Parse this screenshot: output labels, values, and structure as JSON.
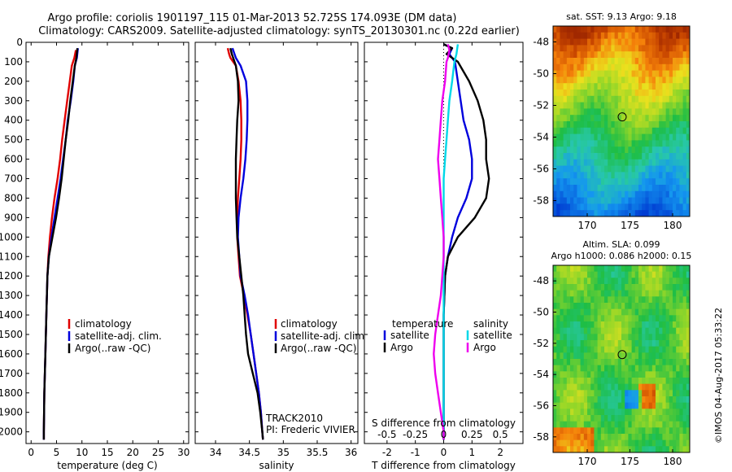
{
  "title_line1": "Argo profile: coriolis 1901197_115 01-Mar-2013 52.725S 174.093E (DM data)",
  "title_line2": "Climatology: CARS2009. Satellite-adjusted climatology: synTS_20130301.nc (0.22d earlier)",
  "colors": {
    "climatology": "#e00000",
    "satellite": "#0000dd",
    "argo": "#000000",
    "sat_salinity": "#00d8e8",
    "argo_salinity": "#ee00ee"
  },
  "chart_data": [
    {
      "type": "line",
      "xlabel": "temperature (deg C)",
      "xlim": [
        -1,
        31
      ],
      "xticks": [
        0,
        5,
        10,
        15,
        20,
        25,
        30
      ],
      "ylim": [
        2060,
        0
      ],
      "yticks": [
        0,
        100,
        200,
        300,
        400,
        500,
        600,
        700,
        800,
        900,
        1000,
        1100,
        1200,
        1300,
        1400,
        1500,
        1600,
        1700,
        1800,
        1900,
        2000
      ],
      "legend": [
        "climatology",
        "satellite-adj. clim.",
        "Argo(..raw -QC)"
      ],
      "series": [
        {
          "name": "climatology",
          "color": "#e00000",
          "points": [
            [
              8.8,
              40
            ],
            [
              8.5,
              80
            ],
            [
              8.0,
              120
            ],
            [
              7.6,
              200
            ],
            [
              7.1,
              300
            ],
            [
              6.6,
              400
            ],
            [
              6.1,
              500
            ],
            [
              5.7,
              600
            ],
            [
              5.2,
              700
            ],
            [
              4.6,
              800
            ],
            [
              4.1,
              900
            ],
            [
              3.7,
              1000
            ],
            [
              3.4,
              1100
            ],
            [
              3.2,
              1200
            ],
            [
              3.0,
              1400
            ],
            [
              2.8,
              1600
            ],
            [
              2.6,
              1800
            ],
            [
              2.5,
              2000
            ],
            [
              2.5,
              2040
            ]
          ]
        },
        {
          "name": "satellite-adj. clim.",
          "color": "#0000dd",
          "points": [
            [
              9.2,
              30
            ],
            [
              9.0,
              80
            ],
            [
              8.6,
              120
            ],
            [
              8.3,
              200
            ],
            [
              7.8,
              300
            ],
            [
              7.2,
              400
            ],
            [
              6.8,
              500
            ],
            [
              6.3,
              600
            ],
            [
              5.8,
              700
            ],
            [
              5.2,
              800
            ],
            [
              4.6,
              900
            ],
            [
              4.0,
              1000
            ],
            [
              3.5,
              1100
            ],
            [
              3.2,
              1200
            ],
            [
              3.0,
              1400
            ],
            [
              2.8,
              1600
            ],
            [
              2.6,
              1800
            ],
            [
              2.5,
              2000
            ],
            [
              2.5,
              2040
            ]
          ]
        },
        {
          "name": "Argo(..raw -QC)",
          "color": "#000000",
          "points": [
            [
              9.1,
              30
            ],
            [
              8.9,
              80
            ],
            [
              8.6,
              120
            ],
            [
              8.2,
              200
            ],
            [
              7.7,
              300
            ],
            [
              7.3,
              400
            ],
            [
              6.8,
              500
            ],
            [
              6.4,
              600
            ],
            [
              6.0,
              700
            ],
            [
              5.5,
              800
            ],
            [
              4.9,
              900
            ],
            [
              4.2,
              1000
            ],
            [
              3.5,
              1100
            ],
            [
              3.2,
              1200
            ],
            [
              3.0,
              1400
            ],
            [
              2.8,
              1600
            ],
            [
              2.6,
              1800
            ],
            [
              2.5,
              2000
            ],
            [
              2.5,
              2040
            ]
          ]
        }
      ]
    },
    {
      "type": "line",
      "xlabel": "salinity",
      "xlim": [
        33.7,
        36.1
      ],
      "xticks": [
        34,
        34.5,
        35,
        35.5,
        36
      ],
      "ylim": [
        2060,
        0
      ],
      "legend": [
        "climatology",
        "satellite-adj. clim.",
        "Argo(..raw -QC)"
      ],
      "annotation": [
        "TRACK2010",
        "PI: Frederic VIVIER"
      ],
      "series": [
        {
          "name": "climatology",
          "color": "#e00000",
          "points": [
            [
              34.18,
              30
            ],
            [
              34.2,
              60
            ],
            [
              34.22,
              80
            ],
            [
              34.3,
              120
            ],
            [
              34.34,
              200
            ],
            [
              34.37,
              300
            ],
            [
              34.38,
              400
            ],
            [
              34.38,
              500
            ],
            [
              34.37,
              600
            ],
            [
              34.35,
              700
            ],
            [
              34.33,
              800
            ],
            [
              34.32,
              900
            ],
            [
              34.32,
              1000
            ],
            [
              34.34,
              1100
            ],
            [
              34.36,
              1200
            ],
            [
              34.42,
              1300
            ],
            [
              34.47,
              1400
            ],
            [
              34.52,
              1500
            ],
            [
              34.56,
              1600
            ],
            [
              34.6,
              1700
            ],
            [
              34.64,
              1800
            ],
            [
              34.67,
              1900
            ],
            [
              34.69,
              2000
            ],
            [
              34.7,
              2040
            ]
          ]
        },
        {
          "name": "satellite-adj. clim.",
          "color": "#0000dd",
          "points": [
            [
              34.25,
              30
            ],
            [
              34.28,
              60
            ],
            [
              34.3,
              80
            ],
            [
              34.37,
              120
            ],
            [
              34.45,
              200
            ],
            [
              34.47,
              300
            ],
            [
              34.47,
              400
            ],
            [
              34.46,
              500
            ],
            [
              34.44,
              600
            ],
            [
              34.41,
              700
            ],
            [
              34.37,
              800
            ],
            [
              34.34,
              900
            ],
            [
              34.33,
              1000
            ],
            [
              34.35,
              1100
            ],
            [
              34.37,
              1200
            ],
            [
              34.43,
              1300
            ],
            [
              34.48,
              1400
            ],
            [
              34.52,
              1500
            ],
            [
              34.56,
              1600
            ],
            [
              34.6,
              1700
            ],
            [
              34.64,
              1800
            ],
            [
              34.67,
              1900
            ],
            [
              34.69,
              2000
            ],
            [
              34.7,
              2040
            ]
          ]
        },
        {
          "name": "Argo(..raw -QC)",
          "color": "#000000",
          "points": [
            [
              34.22,
              30
            ],
            [
              34.24,
              60
            ],
            [
              34.26,
              80
            ],
            [
              34.3,
              120
            ],
            [
              34.33,
              200
            ],
            [
              34.34,
              300
            ],
            [
              34.32,
              400
            ],
            [
              34.31,
              500
            ],
            [
              34.3,
              600
            ],
            [
              34.3,
              700
            ],
            [
              34.3,
              800
            ],
            [
              34.31,
              900
            ],
            [
              34.32,
              1000
            ],
            [
              34.35,
              1100
            ],
            [
              34.38,
              1200
            ],
            [
              34.41,
              1300
            ],
            [
              34.43,
              1400
            ],
            [
              34.45,
              1500
            ],
            [
              34.48,
              1600
            ],
            [
              34.55,
              1700
            ],
            [
              34.62,
              1800
            ],
            [
              34.66,
              1900
            ],
            [
              34.69,
              2000
            ],
            [
              34.7,
              2040
            ]
          ]
        }
      ]
    },
    {
      "type": "line",
      "xlabel": "T difference from climatology",
      "xlabel_top": "S difference from climatology",
      "xlim": [
        -2.8,
        2.8
      ],
      "xticks": [
        -2,
        -1,
        0,
        1,
        2
      ],
      "xticks_top": [
        "-0.5",
        "-0.25",
        "0",
        "0.25",
        "0.5"
      ],
      "ylim": [
        2060,
        0
      ],
      "legend_headers": [
        "temperature",
        "salinity"
      ],
      "legend_temperature": [
        "satellite",
        "Argo"
      ],
      "legend_salinity": [
        "satellite",
        "Argo"
      ],
      "series": [
        {
          "name": "satellite",
          "group": "temperature",
          "color": "#0000dd",
          "points": [
            [
              0.0,
              10
            ],
            [
              0.3,
              30
            ],
            [
              0.2,
              60
            ],
            [
              0.4,
              100
            ],
            [
              0.5,
              200
            ],
            [
              0.6,
              300
            ],
            [
              0.7,
              400
            ],
            [
              0.9,
              500
            ],
            [
              1.0,
              600
            ],
            [
              1.0,
              650
            ],
            [
              1.0,
              700
            ],
            [
              0.8,
              800
            ],
            [
              0.5,
              900
            ],
            [
              0.3,
              1000
            ],
            [
              0.15,
              1100
            ],
            [
              0.05,
              1200
            ],
            [
              0.0,
              1400
            ],
            [
              0.0,
              1600
            ],
            [
              0.0,
              1800
            ],
            [
              0.0,
              2040
            ]
          ]
        },
        {
          "name": "Argo",
          "group": "temperature",
          "color": "#000000",
          "points": [
            [
              0.0,
              10
            ],
            [
              0.3,
              30
            ],
            [
              0.1,
              60
            ],
            [
              0.5,
              100
            ],
            [
              0.9,
              200
            ],
            [
              1.2,
              300
            ],
            [
              1.4,
              400
            ],
            [
              1.5,
              500
            ],
            [
              1.5,
              600
            ],
            [
              1.6,
              700
            ],
            [
              1.5,
              800
            ],
            [
              1.1,
              900
            ],
            [
              0.5,
              1000
            ],
            [
              0.15,
              1100
            ],
            [
              0.05,
              1200
            ],
            [
              0.0,
              1400
            ],
            [
              0.0,
              1600
            ],
            [
              0.0,
              1800
            ],
            [
              0.0,
              2040
            ]
          ]
        },
        {
          "name": "satellite",
          "group": "salinity",
          "color": "#00d8e8",
          "points": [
            [
              0.5,
              10
            ],
            [
              0.45,
              60
            ],
            [
              0.38,
              100
            ],
            [
              0.3,
              200
            ],
            [
              0.2,
              300
            ],
            [
              0.15,
              400
            ],
            [
              0.1,
              500
            ],
            [
              0.05,
              600
            ],
            [
              0.0,
              700
            ],
            [
              0.0,
              800
            ],
            [
              0.0,
              1000
            ],
            [
              0.0,
              1200
            ],
            [
              0.0,
              1400
            ],
            [
              0.0,
              1600
            ],
            [
              0.0,
              1800
            ],
            [
              0.0,
              2040
            ]
          ]
        },
        {
          "name": "Argo",
          "group": "salinity",
          "color": "#ee00ee",
          "points": [
            [
              0.15,
              10
            ],
            [
              0.2,
              40
            ],
            [
              0.15,
              80
            ],
            [
              0.1,
              100
            ],
            [
              0.05,
              200
            ],
            [
              -0.05,
              300
            ],
            [
              -0.1,
              400
            ],
            [
              -0.15,
              500
            ],
            [
              -0.2,
              600
            ],
            [
              -0.15,
              700
            ],
            [
              -0.1,
              800
            ],
            [
              -0.05,
              900
            ],
            [
              0.0,
              1000
            ],
            [
              0.0,
              1100
            ],
            [
              -0.05,
              1200
            ],
            [
              -0.1,
              1300
            ],
            [
              -0.2,
              1400
            ],
            [
              -0.3,
              1500
            ],
            [
              -0.35,
              1600
            ],
            [
              -0.3,
              1700
            ],
            [
              -0.2,
              1800
            ],
            [
              -0.1,
              1900
            ],
            [
              0.0,
              2000
            ],
            [
              0.0,
              2040
            ]
          ]
        }
      ]
    },
    {
      "type": "heatmap",
      "title": "sat. SST: 9.13 Argo: 9.18",
      "xticks": [
        "170",
        "175",
        "180"
      ],
      "yticks": [
        "-48",
        "-50",
        "-52",
        "-54",
        "-56",
        "-58"
      ],
      "xlim": [
        166,
        182
      ],
      "ylim": [
        -59,
        -47
      ],
      "marker": [
        174.093,
        -52.725
      ]
    },
    {
      "type": "heatmap",
      "title_line1": "Altim. SLA: 0.099",
      "title_line2": "Argo h1000: 0.086 h2000: 0.15",
      "xticks": [
        "170",
        "175",
        "180"
      ],
      "yticks": [
        "-48",
        "-50",
        "-52",
        "-54",
        "-56",
        "-58"
      ],
      "xlim": [
        166,
        182
      ],
      "ylim": [
        -59,
        -47
      ],
      "marker": [
        174.093,
        -52.725
      ]
    }
  ],
  "credit": "©IMOS 04-Aug-2017 05:33:22"
}
